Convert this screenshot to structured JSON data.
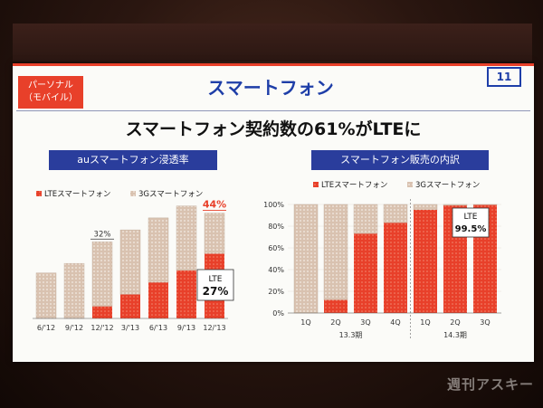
{
  "slide": {
    "tag_line1": "パーソナル",
    "tag_line2": "（モバイル）",
    "title": "スマートフォン",
    "page_number": "11",
    "headline": "スマートフォン契約数の61%がLTEに"
  },
  "colors": {
    "lte": "#e8402a",
    "g3": "#d9c2b0",
    "accent": "#2a3d9c"
  },
  "watermark": "週刊アスキー",
  "chart_data": [
    {
      "type": "bar",
      "title": "auスマートフォン浸透率",
      "legend": [
        "LTEスマートフォン",
        "3Gスマートフォン"
      ],
      "categories": [
        "6/'12",
        "9/'12",
        "12/'12",
        "3/'13",
        "6/'13",
        "9/'13",
        "12/'13"
      ],
      "series": [
        {
          "name": "LTEスマートフォン",
          "values": [
            0,
            0,
            5,
            10,
            15,
            20,
            27
          ]
        },
        {
          "name": "3Gスマートフォン",
          "values": [
            19,
            23,
            27,
            27,
            27,
            27,
            17
          ]
        }
      ],
      "data_labels": [
        "",
        "",
        "32%",
        "",
        "",
        "",
        "44%"
      ],
      "callout": {
        "label": "LTE",
        "value": "27%"
      }
    },
    {
      "type": "bar",
      "title": "スマートフォン販売の内訳",
      "legend": [
        "LTEスマートフォン",
        "3Gスマートフォン"
      ],
      "categories": [
        "1Q",
        "2Q",
        "3Q",
        "4Q",
        "1Q",
        "2Q",
        "3Q"
      ],
      "groups": [
        {
          "label": "13.3期",
          "count": 4
        },
        {
          "label": "14.3期",
          "count": 3
        }
      ],
      "yticks": [
        "0%",
        "20%",
        "40%",
        "60%",
        "80%",
        "100%"
      ],
      "ylim": [
        0,
        100
      ],
      "series": [
        {
          "name": "LTEスマートフォン",
          "values": [
            0,
            12,
            73,
            83,
            95,
            99,
            99.5
          ]
        },
        {
          "name": "3Gスマートフォン",
          "values": [
            100,
            88,
            27,
            17,
            5,
            1,
            0.5
          ]
        }
      ],
      "callout": {
        "label": "LTE",
        "value": "99.5%"
      }
    }
  ]
}
